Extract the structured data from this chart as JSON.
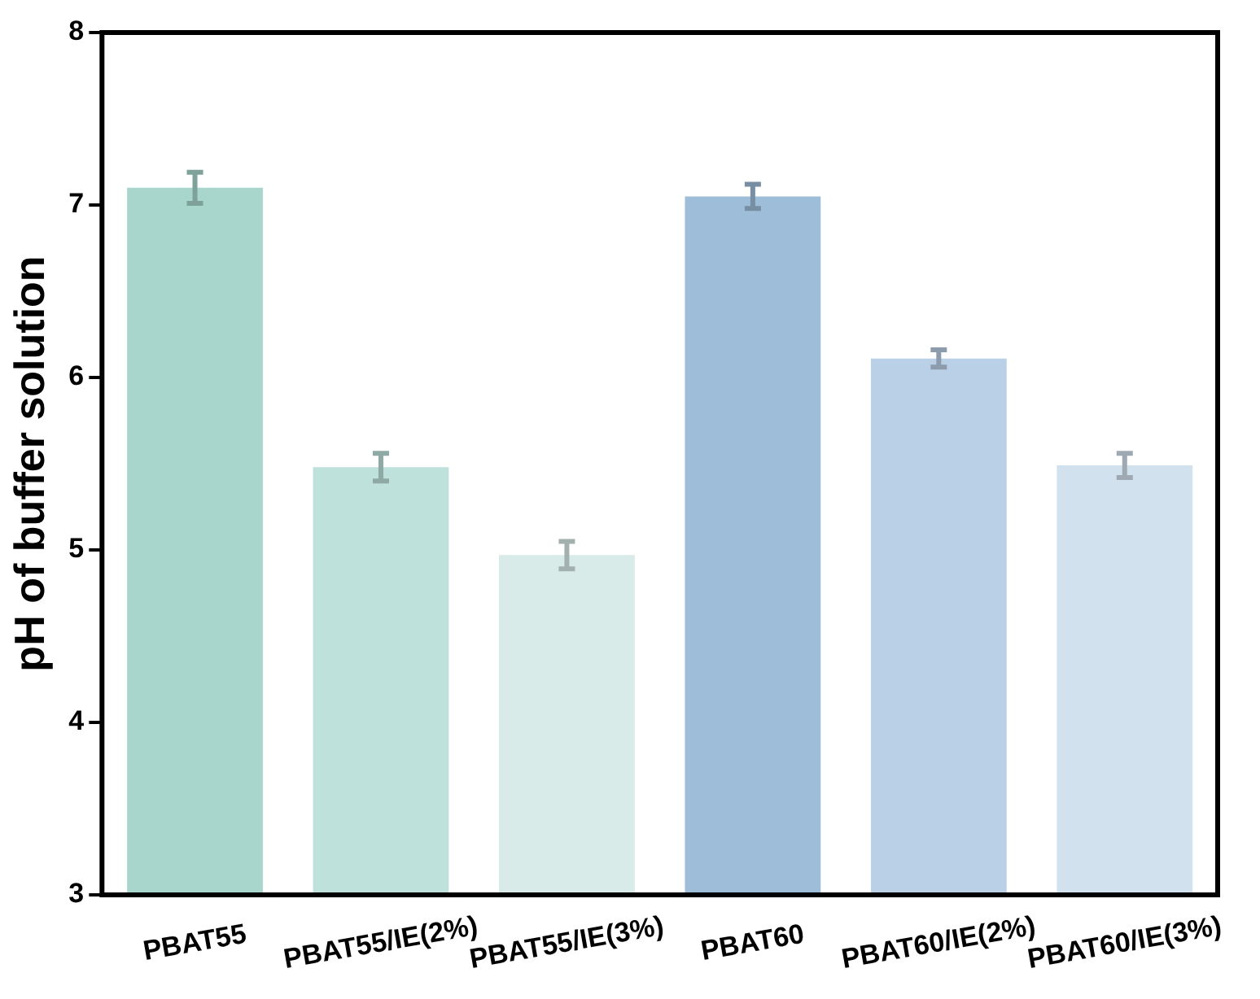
{
  "chart_data": {
    "type": "bar",
    "ylabel": "pH of buffer solution",
    "categories": [
      "PBAT55",
      "PBAT55/IE(2%)",
      "PBAT55/IE(3%)",
      "PBAT60",
      "PBAT60/IE(2%)",
      "PBAT60/IE(3%)"
    ],
    "values": [
      7.1,
      5.48,
      4.97,
      7.05,
      6.11,
      5.49
    ],
    "errors": [
      0.09,
      0.08,
      0.08,
      0.07,
      0.05,
      0.07
    ],
    "colors": [
      "#a8d6cc",
      "#bfe1db",
      "#d8ebe8",
      "#9ebdd9",
      "#bad0e6",
      "#d2e1ee"
    ],
    "ylim": [
      3,
      8
    ],
    "yticks": [
      3,
      4,
      5,
      6,
      7,
      8
    ],
    "grid": false,
    "legend": false
  }
}
